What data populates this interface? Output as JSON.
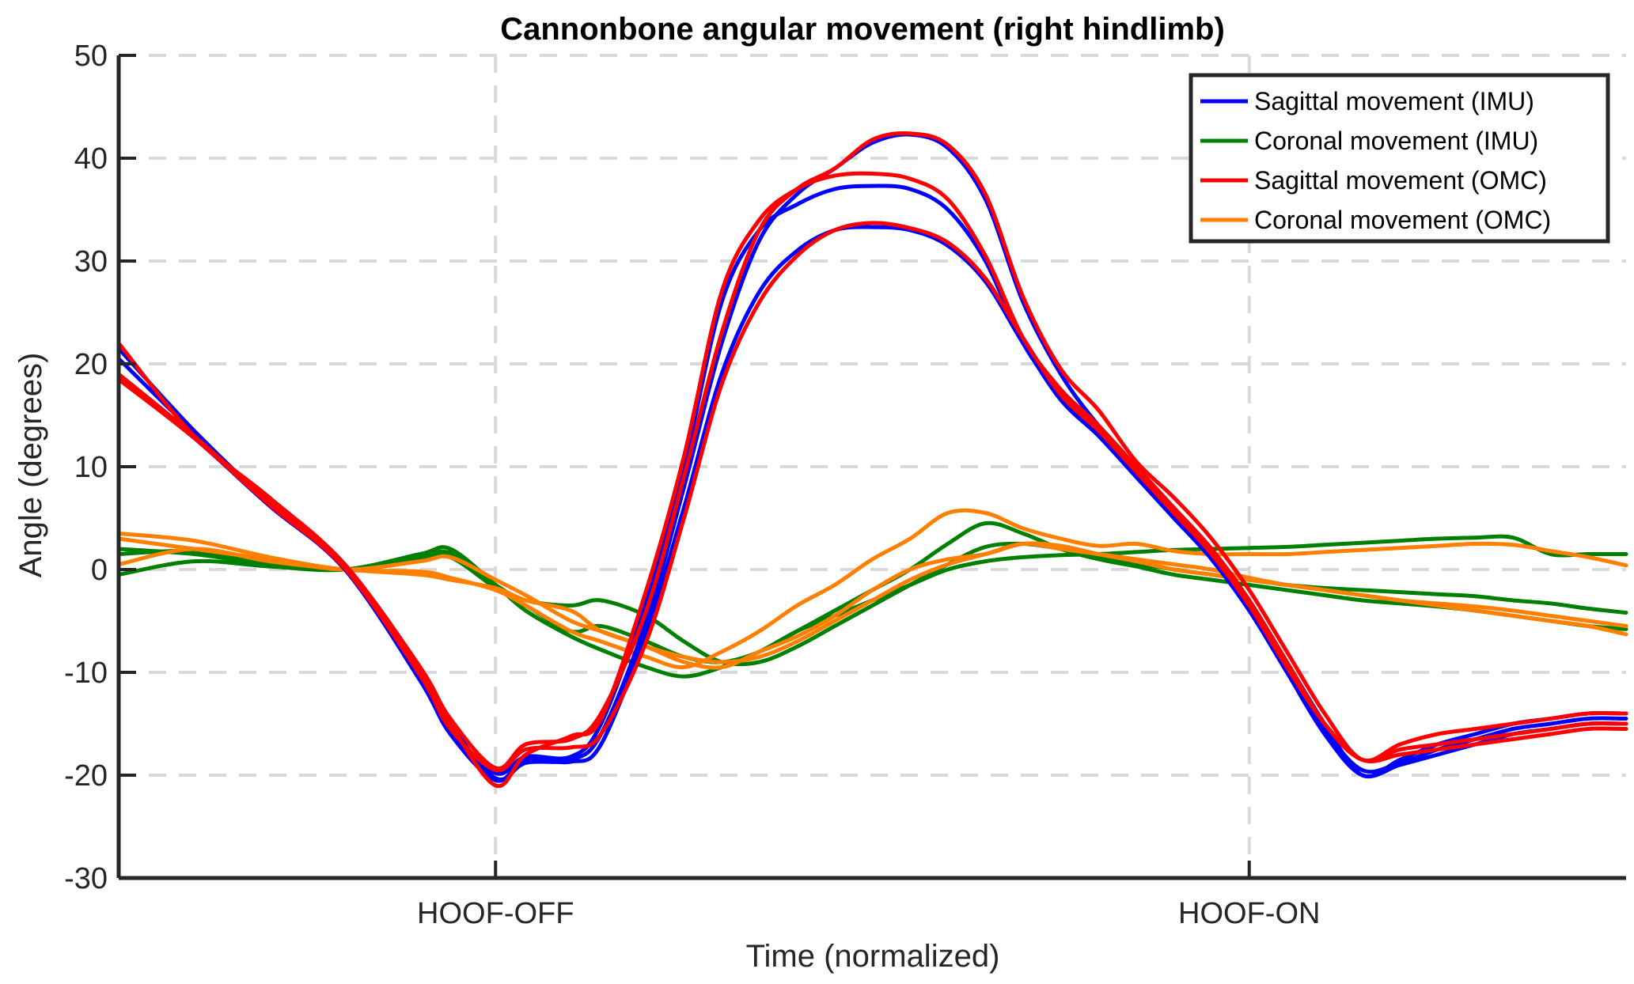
{
  "chart_data": {
    "type": "line",
    "title": "Cannonbone angular movement (right hindlimb)",
    "xlabel": "Time (normalized)",
    "ylabel": "Angle (degrees)",
    "xlim": [
      0,
      100
    ],
    "ylim": [
      -30,
      50
    ],
    "yticks": [
      -30,
      -20,
      -10,
      0,
      10,
      20,
      30,
      40,
      50
    ],
    "xticks": [
      {
        "x": 25,
        "label": "HOOF-OFF"
      },
      {
        "x": 75,
        "label": "HOOF-ON"
      }
    ],
    "grid": true,
    "legend_position": "top-right",
    "colors": {
      "sagittal_imu": "#0000ff",
      "coronal_imu": "#008000",
      "sagittal_omc": "#ff0000",
      "coronal_omc": "#ff8000"
    },
    "x": [
      0,
      5,
      10,
      15,
      20,
      22,
      25,
      27,
      30,
      32,
      35,
      37.5,
      40,
      42.5,
      45,
      47.5,
      50,
      52.5,
      55,
      57.5,
      60,
      62.5,
      65,
      67.5,
      70,
      72.5,
      75,
      77.5,
      80,
      82.5,
      85,
      87.5,
      90,
      92.5,
      95,
      97.5,
      100
    ],
    "series": [
      {
        "name": "Sagittal movement (IMU)",
        "color": "#0000ff",
        "values": [
          21.5,
          13.5,
          6.5,
          0.5,
          -10,
          -15,
          -20.3,
          -18.8,
          -18.5,
          -16,
          -5,
          8,
          22,
          32,
          36.5,
          39,
          41.5,
          42.3,
          41,
          36,
          26,
          19,
          14,
          10,
          6,
          2,
          -3,
          -9,
          -15,
          -20,
          -18.5,
          -17,
          -16,
          -15,
          -14.5,
          -14,
          -14
        ]
      },
      {
        "name": "Sagittal movement (IMU)",
        "color": "#0000ff",
        "values": [
          20.5,
          13.3,
          6.4,
          0.2,
          -10.5,
          -15.5,
          -19.8,
          -18.2,
          -18.2,
          -15,
          -3,
          10,
          26,
          33,
          35.5,
          37,
          37.3,
          37,
          35,
          30,
          22,
          17,
          13.5,
          9.5,
          5.5,
          1.5,
          -3.5,
          -9.5,
          -15.5,
          -19.5,
          -18.8,
          -17.5,
          -16.5,
          -15.5,
          -15,
          -14.5,
          -14.5
        ]
      },
      {
        "name": "Sagittal movement (IMU)",
        "color": "#0000ff",
        "values": [
          18.5,
          12.8,
          6.2,
          0,
          -10.8,
          -16,
          -20.5,
          -18.5,
          -18.7,
          -17,
          -6,
          6,
          19,
          27,
          31,
          33,
          33.3,
          33,
          31.5,
          28,
          22,
          16.5,
          13,
          9,
          5,
          1,
          -4,
          -10,
          -16,
          -20,
          -19,
          -18,
          -17,
          -16,
          -15.5,
          -15,
          -15
        ]
      },
      {
        "name": "Coronal movement (IMU)",
        "color": "#008000",
        "values": [
          -0.5,
          0.8,
          0.3,
          0,
          1.5,
          2,
          -1.5,
          -4,
          -6.5,
          -7.8,
          -9.5,
          -10.4,
          -9.5,
          -8,
          -6,
          -4.5,
          -3,
          -1.5,
          0,
          0.8,
          1.2,
          1.4,
          1.5,
          1.7,
          1.9,
          2,
          2.1,
          2.2,
          2.4,
          2.6,
          2.8,
          3,
          3.1,
          3.1,
          1.5,
          1.5,
          1.5
        ]
      },
      {
        "name": "Coronal movement (IMU)",
        "color": "#008000",
        "values": [
          1.5,
          1.8,
          0.8,
          0,
          1,
          1.2,
          -1.8,
          -3.5,
          -6,
          -5.5,
          -7,
          -8.5,
          -9,
          -8,
          -6,
          -4,
          -2,
          0,
          2.5,
          4.5,
          3.5,
          2,
          1,
          0.3,
          -0.5,
          -1,
          -1.5,
          -2,
          -2.5,
          -3,
          -3.3,
          -3.6,
          -4,
          -4.5,
          -5,
          -5.5,
          -5.8
        ]
      },
      {
        "name": "Coronal movement (IMU)",
        "color": "#008000",
        "values": [
          2,
          1.5,
          0.5,
          0,
          1.2,
          1.6,
          -1.5,
          -3,
          -3.5,
          -3,
          -4.5,
          -7,
          -9,
          -9,
          -7.5,
          -5.5,
          -3.5,
          -1.5,
          0.5,
          2.2,
          2.5,
          2,
          1.2,
          0.6,
          0,
          -0.5,
          -1,
          -1.5,
          -1.8,
          -2,
          -2.2,
          -2.4,
          -2.6,
          -3,
          -3.3,
          -3.8,
          -4.2
        ]
      },
      {
        "name": "Sagittal movement (OMC)",
        "color": "#ff0000",
        "values": [
          22,
          13,
          7,
          0.5,
          -9.5,
          -14.5,
          -19.3,
          -17,
          -16.5,
          -14,
          -4,
          9,
          23,
          33,
          37,
          39,
          41.8,
          42.4,
          41.3,
          36.5,
          26.5,
          19.5,
          15.5,
          10.5,
          7,
          3,
          -2,
          -8,
          -14,
          -18.5,
          -17,
          -16,
          -15.5,
          -15,
          -14.5,
          -14,
          -14
        ]
      },
      {
        "name": "Sagittal movement (OMC)",
        "color": "#ff0000",
        "values": [
          19,
          13,
          6.5,
          0.3,
          -10,
          -15,
          -21,
          -18,
          -16.2,
          -14.5,
          -2,
          11,
          27,
          34,
          37,
          38.3,
          38.5,
          38,
          36,
          30.5,
          22.5,
          17.5,
          14,
          10,
          6,
          2,
          -3,
          -9,
          -15,
          -18.5,
          -17.5,
          -17,
          -16.5,
          -16,
          -15.5,
          -15,
          -15
        ]
      },
      {
        "name": "Sagittal movement (OMC)",
        "color": "#ff0000",
        "values": [
          18.5,
          12.8,
          6.3,
          0.1,
          -10.3,
          -15.5,
          -19.5,
          -17.5,
          -17.3,
          -16,
          -7,
          5,
          18,
          26,
          30.5,
          33,
          33.7,
          33.2,
          31.8,
          28.3,
          22.5,
          17,
          13.5,
          9.5,
          5.5,
          1.5,
          -3.5,
          -9.5,
          -15,
          -18.5,
          -18,
          -17.5,
          -17,
          -16.5,
          -16,
          -15.5,
          -15.5
        ]
      },
      {
        "name": "Coronal movement (OMC)",
        "color": "#ff8000",
        "values": [
          3.5,
          2.8,
          1.2,
          0,
          -0.2,
          -0.8,
          -2,
          -3.5,
          -6,
          -7,
          -8.5,
          -9.5,
          -8,
          -6,
          -3.5,
          -1.5,
          1,
          3,
          5.5,
          5.5,
          4,
          3,
          2.3,
          2.5,
          1.8,
          1.5,
          1.5,
          1.5,
          1.7,
          1.9,
          2.1,
          2.3,
          2.5,
          2.4,
          1.8,
          1.2,
          0.4
        ]
      },
      {
        "name": "Coronal movement (OMC)",
        "color": "#ff8000",
        "values": [
          0.5,
          2,
          0.8,
          0,
          -0.5,
          -1,
          -1.8,
          -3,
          -4,
          -6,
          -7.5,
          -9,
          -9.5,
          -8,
          -6.5,
          -4.5,
          -2,
          0,
          1,
          1.5,
          2.5,
          2.3,
          1.5,
          0.8,
          0,
          -0.5,
          -1,
          -1.5,
          -2,
          -2.5,
          -3,
          -3.5,
          -4,
          -4.5,
          -5,
          -5.5,
          -6.3
        ]
      },
      {
        "name": "Coronal movement (OMC)",
        "color": "#ff8000",
        "values": [
          3,
          2,
          1,
          0,
          0.8,
          1.2,
          -1,
          -2.5,
          -5,
          -6,
          -7.5,
          -8.5,
          -9,
          -8.5,
          -7,
          -5,
          -3,
          -1,
          0.5,
          1.5,
          2.5,
          2,
          1.5,
          1,
          0.5,
          0,
          -0.8,
          -1.5,
          -2,
          -2.5,
          -3,
          -3.3,
          -3.6,
          -4,
          -4.5,
          -5,
          -5.5
        ]
      }
    ],
    "legend": [
      {
        "label": "Sagittal movement (IMU)",
        "color": "#0000ff"
      },
      {
        "label": "Coronal movement (IMU)",
        "color": "#008000"
      },
      {
        "label": "Sagittal movement (OMC)",
        "color": "#ff0000"
      },
      {
        "label": "Coronal movement (OMC)",
        "color": "#ff8000"
      }
    ]
  }
}
